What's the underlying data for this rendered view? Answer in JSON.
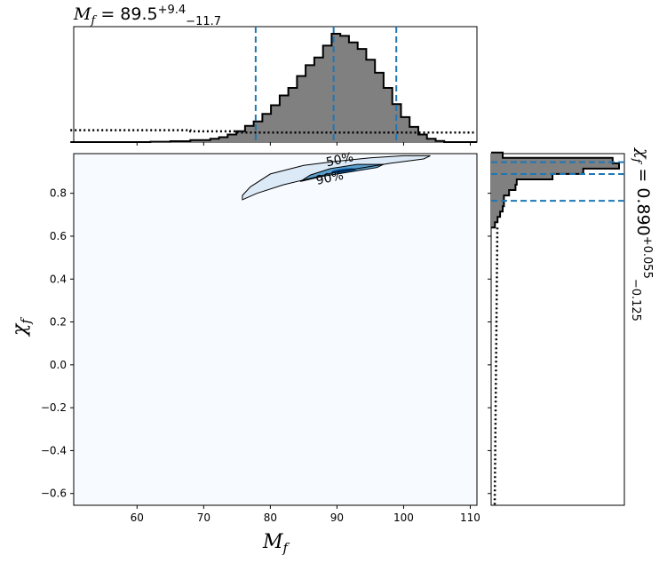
{
  "chart_data": [
    {
      "panel": "marginal-top",
      "type": "histogram",
      "title_var": "M",
      "title_sub": "f",
      "title_eq": " = 89.5",
      "title_sup": "+9.4",
      "title_low": "−11.7",
      "median": 89.5,
      "quantiles": [
        77.8,
        89.5,
        98.9
      ],
      "xlim": [
        50.5,
        111
      ],
      "bin_edges": [
        50,
        62,
        65,
        68,
        71,
        72.3,
        73.6,
        74.9,
        76.2,
        77.5,
        78.8,
        80.1,
        81.4,
        82.7,
        84,
        85.3,
        86.6,
        87.9,
        89.2,
        90.5,
        91.8,
        93.1,
        94.4,
        95.7,
        97,
        98.3,
        99.6,
        100.9,
        102.2,
        103.5,
        104.8,
        106.1,
        111
      ],
      "density": [
        0,
        0.003,
        0.008,
        0.018,
        0.03,
        0.045,
        0.07,
        0.1,
        0.15,
        0.19,
        0.26,
        0.34,
        0.43,
        0.5,
        0.61,
        0.71,
        0.78,
        0.89,
        1.0,
        0.98,
        0.92,
        0.86,
        0.76,
        0.64,
        0.5,
        0.35,
        0.23,
        0.14,
        0.07,
        0.03,
        0.01,
        0
      ],
      "prior_density": [
        0.05,
        0.05,
        0.05,
        0.045,
        0.045,
        0.045,
        0.045,
        0.04,
        0.04,
        0.04,
        0.04,
        0.04,
        0.04,
        0.04,
        0.04,
        0.04,
        0.04,
        0.04,
        0.04,
        0.04,
        0.04,
        0.04,
        0.04,
        0.04,
        0.04,
        0.04,
        0.04,
        0.04,
        0.04,
        0.04,
        0.04,
        0.04
      ]
    },
    {
      "panel": "joint",
      "type": "heatmap",
      "xlabel_var": "M",
      "xlabel_sub": "f",
      "ylabel_var": "χ",
      "ylabel_sub": "f",
      "xlim": [
        50.5,
        111
      ],
      "ylim": [
        -0.655,
        0.985
      ],
      "xticks": [
        60,
        70,
        80,
        90,
        100,
        110
      ],
      "yticks": [
        -0.6,
        -0.4,
        -0.2,
        0.0,
        0.2,
        0.4,
        0.6,
        0.8
      ],
      "xtick_labels": [
        "60",
        "70",
        "80",
        "90",
        "100",
        "110"
      ],
      "ytick_labels": [
        "−0.6",
        "−0.4",
        "−0.2",
        "0.0",
        "0.2",
        "0.4",
        "0.6",
        "0.8"
      ],
      "contours": [
        {
          "level": "90%",
          "points": [
            [
              75.8,
              0.77
            ],
            [
              78,
              0.8
            ],
            [
              82,
              0.84
            ],
            [
              86,
              0.87
            ],
            [
              90,
              0.9
            ],
            [
              94,
              0.92
            ],
            [
              98,
              0.94
            ],
            [
              103,
              0.96
            ],
            [
              104,
              0.975
            ],
            [
              100,
              0.975
            ],
            [
              95,
              0.965
            ],
            [
              90,
              0.95
            ],
            [
              85,
              0.93
            ],
            [
              80,
              0.89
            ],
            [
              77,
              0.83
            ],
            [
              75.8,
              0.79
            ]
          ]
        },
        {
          "level": "50%",
          "points": [
            [
              84.5,
              0.855
            ],
            [
              88,
              0.88
            ],
            [
              92,
              0.9
            ],
            [
              96,
              0.92
            ],
            [
              97,
              0.935
            ],
            [
              93,
              0.935
            ],
            [
              89,
              0.915
            ],
            [
              86,
              0.885
            ]
          ]
        }
      ],
      "contour_labels": [
        "50%",
        "90%"
      ]
    },
    {
      "panel": "marginal-right",
      "type": "histogram",
      "title_var": "χ",
      "title_sub": "f",
      "title_eq": " = 0.890",
      "title_sup": "+0.055",
      "title_low": "−0.125",
      "median": 0.89,
      "quantiles": [
        0.765,
        0.89,
        0.945
      ],
      "ylim": [
        -0.655,
        0.985
      ],
      "bin_edges": [
        0.64,
        0.665,
        0.69,
        0.715,
        0.74,
        0.765,
        0.79,
        0.815,
        0.84,
        0.865,
        0.89,
        0.915,
        0.94,
        0.965,
        0.99
      ],
      "density": [
        0.03,
        0.05,
        0.07,
        0.09,
        0.1,
        0.1,
        0.14,
        0.19,
        0.2,
        0.48,
        0.72,
        1.0,
        0.95,
        0.09
      ],
      "prior_density": [
        0.05,
        0.05,
        0.045,
        0.045,
        0.045,
        0.04,
        0.04,
        0.045,
        0.04,
        0.045,
        0.04,
        0.04,
        0.04,
        0.035
      ]
    }
  ],
  "colors": {
    "hist_fill": "#808080",
    "quantile_line": "#1f77b4",
    "heat_low": "#f7fbff",
    "heat_high": "#08519c",
    "stroke": "#000000"
  }
}
